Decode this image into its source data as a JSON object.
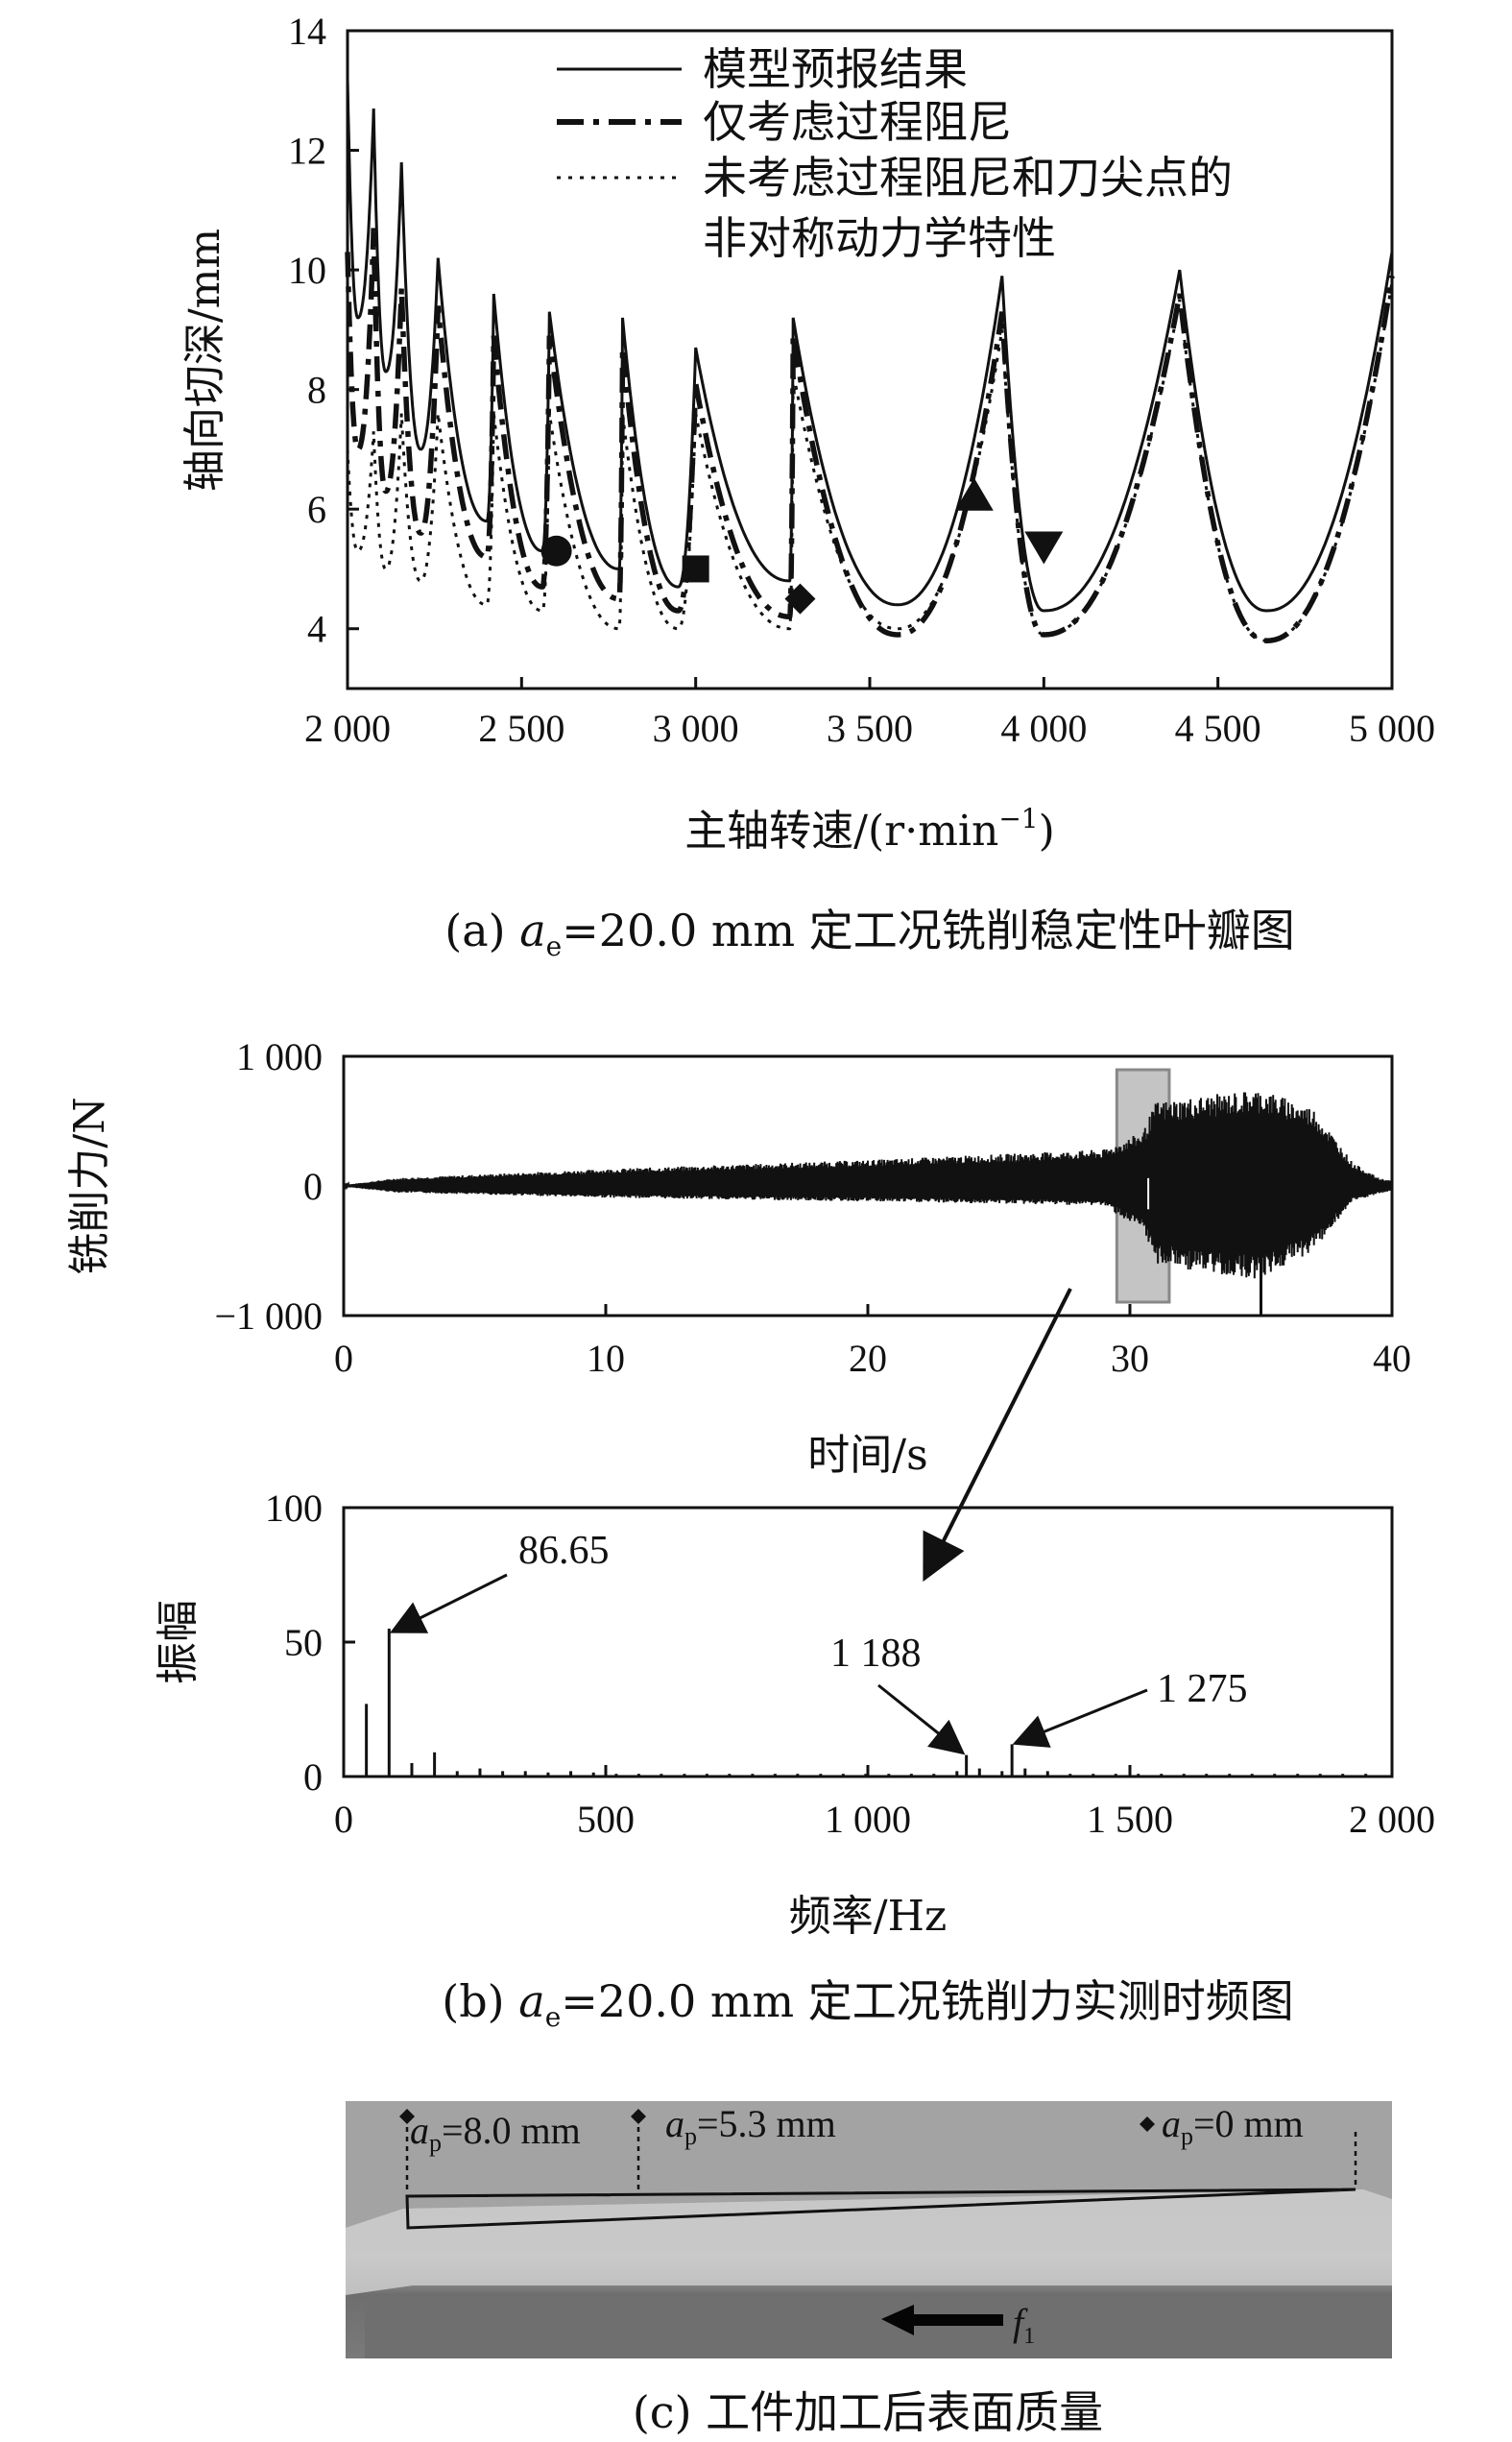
{
  "chart_data": [
    {
      "id": "a",
      "type": "line",
      "caption": {
        "prefix": "(a) ",
        "var": "a",
        "sub": "e",
        "suffix": "=20.0 mm 定工况铣削稳定性叶瓣图"
      },
      "xlabel": "主轴转速/(r·min",
      "xlabel_sup": "−1",
      "xlabel_end": ")",
      "ylabel": "轴向切深/mm",
      "xlim": [
        2000,
        5000
      ],
      "ylim": [
        3,
        14
      ],
      "xticks": [
        2000,
        2500,
        3000,
        3500,
        4000,
        4500,
        5000
      ],
      "xtick_labels": [
        "2 000",
        "2 500",
        "3 000",
        "3 500",
        "4 000",
        "4 500",
        "5 000"
      ],
      "yticks": [
        4,
        6,
        8,
        10,
        12,
        14
      ],
      "ytick_labels": [
        "4",
        "6",
        "8",
        "10",
        "12",
        "14"
      ],
      "legend": [
        "模型预报结果",
        "仅考虑过程阻尼",
        "未考虑过程阻尼和刀尖点的",
        "非对称动力学特性"
      ],
      "legend_position": "top-right",
      "series": [
        {
          "name": "模型预报结果",
          "style": "solid",
          "lobes": [
            [
              2000,
              13.2
            ],
            [
              2030,
              9.2
            ],
            [
              2075,
              12.7
            ],
            [
              2110,
              8.3
            ],
            [
              2155,
              11.8
            ],
            [
              2210,
              7.0
            ],
            [
              2260,
              10.2
            ],
            [
              2400,
              5.8
            ],
            [
              2420,
              9.6
            ],
            [
              2560,
              5.3
            ],
            [
              2580,
              9.3
            ],
            [
              2780,
              5.0
            ],
            [
              2790,
              9.2
            ],
            [
              2950,
              4.7
            ],
            [
              3000,
              8.7
            ],
            [
              3270,
              4.8
            ],
            [
              3280,
              9.2
            ],
            [
              3580,
              4.4
            ],
            [
              3880,
              9.9
            ],
            [
              4000,
              4.3
            ],
            [
              4390,
              10.0
            ],
            [
              4640,
              4.3
            ],
            [
              5000,
              10.3
            ]
          ]
        },
        {
          "name": "仅考虑过程阻尼",
          "style": "dashdot",
          "lobes": [
            [
              2000,
              10.3
            ],
            [
              2030,
              7.0
            ],
            [
              2075,
              10.7
            ],
            [
              2110,
              6.3
            ],
            [
              2155,
              9.7
            ],
            [
              2210,
              5.6
            ],
            [
              2260,
              9.4
            ],
            [
              2400,
              5.2
            ],
            [
              2420,
              8.9
            ],
            [
              2560,
              4.7
            ],
            [
              2580,
              8.9
            ],
            [
              2780,
              4.5
            ],
            [
              2790,
              8.7
            ],
            [
              2950,
              4.3
            ],
            [
              3000,
              8.1
            ],
            [
              3270,
              4.2
            ],
            [
              3280,
              8.9
            ],
            [
              3580,
              3.9
            ],
            [
              3880,
              9.3
            ],
            [
              4000,
              3.9
            ],
            [
              4390,
              9.6
            ],
            [
              4640,
              3.8
            ],
            [
              5000,
              9.9
            ]
          ]
        },
        {
          "name": "未考虑过程阻尼和刀尖点的非对称动力学特性",
          "style": "dotted",
          "lobes": [
            [
              2000,
              7.0
            ],
            [
              2030,
              5.3
            ],
            [
              2075,
              7.3
            ],
            [
              2110,
              5.0
            ],
            [
              2155,
              7.6
            ],
            [
              2210,
              4.8
            ],
            [
              2260,
              7.6
            ],
            [
              2400,
              4.4
            ],
            [
              2420,
              7.6
            ],
            [
              2560,
              4.3
            ],
            [
              2580,
              7.6
            ],
            [
              2780,
              4.0
            ],
            [
              2790,
              7.6
            ],
            [
              2950,
              4.0
            ],
            [
              3000,
              7.6
            ],
            [
              3270,
              4.0
            ],
            [
              3280,
              8.3
            ],
            [
              3580,
              4.0
            ],
            [
              3880,
              9.0
            ],
            [
              4000,
              3.9
            ],
            [
              4390,
              9.5
            ],
            [
              4640,
              3.8
            ],
            [
              5000,
              9.8
            ]
          ]
        }
      ],
      "markers": [
        {
          "shape": "circle",
          "x": 2600,
          "y": 5.3
        },
        {
          "shape": "square",
          "x": 3000,
          "y": 5.0
        },
        {
          "shape": "diamond",
          "x": 3300,
          "y": 4.5
        },
        {
          "shape": "triangle-up",
          "x": 3800,
          "y": 6.2
        },
        {
          "shape": "triangle-down",
          "x": 4000,
          "y": 5.4
        }
      ]
    },
    {
      "id": "b-time",
      "type": "line",
      "xlabel": "时间/s",
      "ylabel": "铣削力/N",
      "xlim": [
        0,
        40
      ],
      "ylim": [
        -1000,
        1000
      ],
      "xticks": [
        0,
        10,
        20,
        30,
        40
      ],
      "xtick_labels": [
        "0",
        "10",
        "20",
        "30",
        "40"
      ],
      "yticks": [
        -1000,
        0,
        1000
      ],
      "ytick_labels": [
        "−1 000",
        "0",
        "1 000"
      ],
      "envelope": {
        "t": [
          0,
          2,
          10,
          20,
          29,
          30.5,
          31,
          33,
          35,
          37,
          38.5,
          39.5,
          40
        ],
        "upper": [
          5,
          60,
          130,
          200,
          280,
          420,
          650,
          700,
          750,
          600,
          180,
          60,
          40
        ],
        "lower": [
          -5,
          -50,
          -90,
          -120,
          -150,
          -350,
          -600,
          -680,
          -720,
          -500,
          -120,
          -60,
          -40
        ]
      },
      "highlight_window": [
        29.5,
        31.5
      ]
    },
    {
      "id": "b-freq",
      "type": "bar",
      "caption": {
        "prefix": "(b) ",
        "var": "a",
        "sub": "e",
        "suffix": "=20.0 mm 定工况铣削力实测时频图"
      },
      "xlabel": "频率/Hz",
      "ylabel": "振幅",
      "xlim": [
        0,
        2000
      ],
      "ylim": [
        0,
        100
      ],
      "xticks": [
        0,
        500,
        1000,
        1500,
        2000
      ],
      "xtick_labels": [
        "0",
        "500",
        "1 000",
        "1 500",
        "2 000"
      ],
      "yticks": [
        0,
        50,
        100
      ],
      "ytick_labels": [
        "0",
        "50",
        "100"
      ],
      "x": [
        0,
        43.3,
        86.65,
        130,
        173.3,
        216.6,
        260,
        303.3,
        346.6,
        390,
        433.3,
        476.6,
        520,
        563,
        606,
        650,
        693,
        736,
        780,
        823,
        866,
        910,
        953,
        996,
        1040,
        1083,
        1126,
        1170,
        1188,
        1213,
        1256,
        1275,
        1300,
        1343,
        1386,
        1430,
        1473,
        1516,
        1560,
        1603,
        1646,
        1690,
        1733,
        1776,
        1820,
        1863,
        1906,
        1950
      ],
      "values": [
        50,
        27,
        55,
        5,
        9,
        2,
        3,
        2,
        2,
        1.5,
        2,
        1.5,
        1,
        1,
        1,
        1,
        1,
        1,
        1,
        1,
        1,
        1,
        1,
        1,
        1,
        1,
        1,
        2,
        8,
        3,
        2,
        12,
        3,
        2,
        1,
        1,
        1,
        1,
        1,
        1,
        1,
        1,
        1,
        1,
        1,
        1,
        1,
        1
      ],
      "annotations": [
        {
          "text": "86.65",
          "x": 86.65,
          "y": 55
        },
        {
          "text": "1 188",
          "x": 1188,
          "y": 8
        },
        {
          "text": "1 275",
          "x": 1275,
          "y": 12
        }
      ]
    }
  ],
  "photo": {
    "caption": "(c) 工件加工后表面质量",
    "labels": [
      {
        "var": "a",
        "sub": "p",
        "value": "=8.0 mm"
      },
      {
        "var": "a",
        "sub": "p",
        "value": "=5.3 mm"
      },
      {
        "var": "a",
        "sub": "p",
        "value": "=0 mm"
      }
    ],
    "feed_label": {
      "var": "f",
      "sub": "1"
    }
  },
  "colors": {
    "line": "#111111",
    "highlight": "#b0b0b0",
    "photo_bg": "#9a9a9a"
  }
}
